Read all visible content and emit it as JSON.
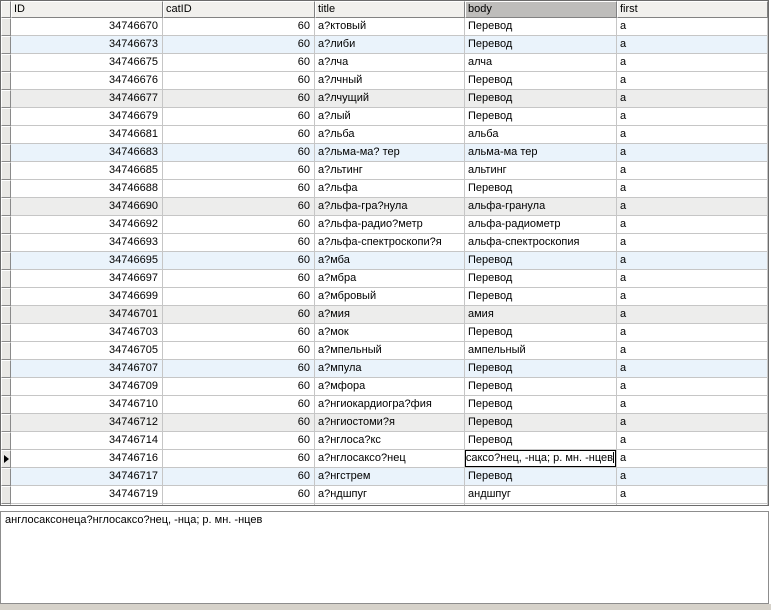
{
  "colors": {
    "header_bg": "#f1f0ed",
    "selected_column_header": "#bebdbb",
    "row_stripe_blue": "#eaf3fb",
    "row_stripe_gray": "#ededec",
    "gridline": "#c6c6c6",
    "selector_bg": "#e9e8e5"
  },
  "grid": {
    "columns": [
      {
        "label": "ID",
        "selected": false
      },
      {
        "label": "catID",
        "selected": false
      },
      {
        "label": "title",
        "selected": false
      },
      {
        "label": "body",
        "selected": true
      },
      {
        "label": "first",
        "selected": false
      }
    ],
    "current_row_index": 24,
    "partial_row_visible": true,
    "editor": {
      "visible_text": "саксо?нец, -нца; р. мн. -нцев"
    },
    "rows": [
      {
        "id": "34746670",
        "catID": "60",
        "title": "а?ктовый",
        "body": "Перевод",
        "first": "а",
        "stripe": ""
      },
      {
        "id": "34746673",
        "catID": "60",
        "title": "а?либи",
        "body": "Перевод",
        "first": "а",
        "stripe": "blue"
      },
      {
        "id": "34746675",
        "catID": "60",
        "title": "а?лча",
        "body": "алча",
        "first": "а",
        "stripe": ""
      },
      {
        "id": "34746676",
        "catID": "60",
        "title": "а?лчный",
        "body": "Перевод",
        "first": "а",
        "stripe": ""
      },
      {
        "id": "34746677",
        "catID": "60",
        "title": "а?лчущий",
        "body": "Перевод",
        "first": "а",
        "stripe": "gray"
      },
      {
        "id": "34746679",
        "catID": "60",
        "title": "а?лый",
        "body": "Перевод",
        "first": "а",
        "stripe": ""
      },
      {
        "id": "34746681",
        "catID": "60",
        "title": "а?льба",
        "body": "альба",
        "first": "а",
        "stripe": ""
      },
      {
        "id": "34746683",
        "catID": "60",
        "title": "а?льма-ма? тер",
        "body": "альма-ма тер",
        "first": "а",
        "stripe": "blue"
      },
      {
        "id": "34746685",
        "catID": "60",
        "title": "а?льтинг",
        "body": "альтинг",
        "first": "а",
        "stripe": ""
      },
      {
        "id": "34746688",
        "catID": "60",
        "title": "а?льфа",
        "body": "Перевод",
        "first": "а",
        "stripe": ""
      },
      {
        "id": "34746690",
        "catID": "60",
        "title": "а?льфа-гра?нула",
        "body": "альфа-гранула",
        "first": "а",
        "stripe": "gray"
      },
      {
        "id": "34746692",
        "catID": "60",
        "title": "а?льфа-радио?метр",
        "body": "альфа-радиометр",
        "first": "а",
        "stripe": ""
      },
      {
        "id": "34746693",
        "catID": "60",
        "title": "а?льфа-спектроскопи?я",
        "body": "альфа-спектроскопия",
        "first": "а",
        "stripe": ""
      },
      {
        "id": "34746695",
        "catID": "60",
        "title": "а?мба",
        "body": "Перевод",
        "first": "а",
        "stripe": "blue"
      },
      {
        "id": "34746697",
        "catID": "60",
        "title": "а?мбра",
        "body": "Перевод",
        "first": "а",
        "stripe": ""
      },
      {
        "id": "34746699",
        "catID": "60",
        "title": "а?мбровый",
        "body": "Перевод",
        "first": "а",
        "stripe": ""
      },
      {
        "id": "34746701",
        "catID": "60",
        "title": "а?мия",
        "body": "амия",
        "first": "а",
        "stripe": "gray"
      },
      {
        "id": "34746703",
        "catID": "60",
        "title": "а?мок",
        "body": "Перевод",
        "first": "а",
        "stripe": ""
      },
      {
        "id": "34746705",
        "catID": "60",
        "title": "а?мпельный",
        "body": "ампельный",
        "first": "а",
        "stripe": ""
      },
      {
        "id": "34746707",
        "catID": "60",
        "title": "а?мпула",
        "body": "Перевод",
        "first": "а",
        "stripe": "blue"
      },
      {
        "id": "34746709",
        "catID": "60",
        "title": "а?мфора",
        "body": "Перевод",
        "first": "а",
        "stripe": ""
      },
      {
        "id": "34746710",
        "catID": "60",
        "title": "а?нгиокардиогра?фия",
        "body": "Перевод",
        "first": "а",
        "stripe": ""
      },
      {
        "id": "34746712",
        "catID": "60",
        "title": "а?нгиостоми?я",
        "body": "Перевод",
        "first": "а",
        "stripe": "gray"
      },
      {
        "id": "34746714",
        "catID": "60",
        "title": "а?нглоса?кс",
        "body": "Перевод",
        "first": "а",
        "stripe": ""
      },
      {
        "id": "34746716",
        "catID": "60",
        "title": "а?нглосаксо?нец",
        "body": "",
        "first": "а",
        "stripe": "",
        "editing": true
      },
      {
        "id": "34746717",
        "catID": "60",
        "title": "а?нгстрем",
        "body": "Перевод",
        "first": "а",
        "stripe": "blue"
      },
      {
        "id": "34746719",
        "catID": "60",
        "title": "а?ндшпуг",
        "body": "андшпуг",
        "first": "а",
        "stripe": ""
      }
    ]
  },
  "detail_panel": {
    "text": "англосаксонеца?нглосаксо?нец, -нца; р. мн. -нцев"
  }
}
